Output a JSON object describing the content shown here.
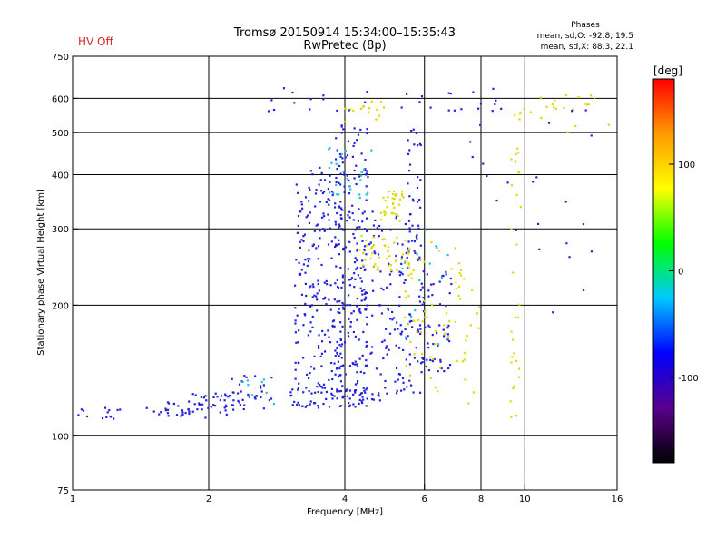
{
  "chart_data": {
    "type": "scatter",
    "title": "Tromsø 20150914 15:34:00–15:35:43",
    "subtitle": "RwPretec (8p)",
    "status_label": "HV Off",
    "info": {
      "heading": "Phases",
      "line1": "mean, sd,O: -92.8, 19.5",
      "line2": "mean, sd,X: 88.3, 22.1"
    },
    "xlabel": "Frequency [MHz]",
    "ylabel": "Stationary phase Virtual Height [km]",
    "x_scale": "log",
    "y_scale": "log",
    "xlim": [
      1,
      16
    ],
    "ylim": [
      75,
      750
    ],
    "x_ticks": [
      1,
      2,
      4,
      6,
      8,
      10,
      16
    ],
    "x_tick_labels": [
      "1",
      "2",
      "4",
      "6",
      "8",
      "10",
      "16"
    ],
    "x_gridlines": [
      2,
      4,
      6,
      8,
      10
    ],
    "y_ticks": [
      75,
      100,
      200,
      300,
      400,
      500,
      600,
      750
    ],
    "y_tick_labels": [
      "75",
      "100",
      "200",
      "300",
      "400",
      "500",
      "600",
      "750"
    ],
    "y_gridlines": [
      100,
      200,
      300,
      400,
      500,
      600
    ],
    "grid": true,
    "colorbar": {
      "label": "[deg]",
      "range": [
        -180,
        180
      ],
      "ticks": [
        -100,
        0,
        100
      ],
      "tick_labels": [
        "-100",
        "0",
        "100"
      ],
      "colors": [
        "#000000",
        "#5a008c",
        "#0000ff",
        "#00c8ff",
        "#00ff00",
        "#ffff00",
        "#ff9a00",
        "#ff0000"
      ]
    },
    "point_color_blue": "#2222dd",
    "point_color_yellow": "#e0d800",
    "point_color_cyan": "#20c0e0",
    "status_color": "#dd2222",
    "clusters": [
      {
        "x0": 1.0,
        "x1": 1.3,
        "y0": 108,
        "y1": 116,
        "n": 14,
        "color": "blue"
      },
      {
        "x0": 1.45,
        "x1": 1.9,
        "y0": 111,
        "y1": 120,
        "n": 24,
        "color": "blue"
      },
      {
        "x0": 1.8,
        "x1": 2.4,
        "y0": 110,
        "y1": 126,
        "n": 40,
        "color": "blue"
      },
      {
        "x0": 2.2,
        "x1": 2.8,
        "y0": 115,
        "y1": 138,
        "n": 30,
        "color": "blue"
      },
      {
        "x0": 2.3,
        "x1": 2.8,
        "y0": 118,
        "y1": 135,
        "n": 8,
        "color": "cyan"
      },
      {
        "x0": 3.0,
        "x1": 4.8,
        "y0": 116,
        "y1": 128,
        "n": 70,
        "color": "blue"
      },
      {
        "x0": 3.1,
        "x1": 4.0,
        "y0": 125,
        "y1": 420,
        "n": 230,
        "color": "blue"
      },
      {
        "x0": 3.8,
        "x1": 4.5,
        "y0": 130,
        "y1": 540,
        "n": 170,
        "color": "blue"
      },
      {
        "x0": 4.2,
        "x1": 5.9,
        "y0": 125,
        "y1": 330,
        "n": 170,
        "color": "blue"
      },
      {
        "x0": 5.8,
        "x1": 6.9,
        "y0": 140,
        "y1": 240,
        "n": 60,
        "color": "blue"
      },
      {
        "x0": 5.5,
        "x1": 5.9,
        "y0": 280,
        "y1": 520,
        "n": 30,
        "color": "blue"
      },
      {
        "x0": 4.3,
        "x1": 5.6,
        "y0": 240,
        "y1": 290,
        "n": 45,
        "color": "yellow"
      },
      {
        "x0": 4.8,
        "x1": 5.4,
        "y0": 310,
        "y1": 370,
        "n": 30,
        "color": "yellow"
      },
      {
        "x0": 5.4,
        "x1": 7.4,
        "y0": 125,
        "y1": 280,
        "n": 60,
        "color": "yellow"
      },
      {
        "x0": 4.0,
        "x1": 5.0,
        "y0": 520,
        "y1": 600,
        "n": 15,
        "color": "yellow"
      },
      {
        "x0": 3.6,
        "x1": 4.6,
        "y0": 350,
        "y1": 480,
        "n": 25,
        "color": "cyan"
      },
      {
        "x0": 5.2,
        "x1": 6.8,
        "y0": 160,
        "y1": 300,
        "n": 15,
        "color": "cyan"
      },
      {
        "x0": 9.5,
        "x1": 15.8,
        "y0": 500,
        "y1": 610,
        "n": 25,
        "color": "yellow"
      },
      {
        "x0": 9.3,
        "x1": 9.8,
        "y0": 110,
        "y1": 460,
        "n": 30,
        "color": "yellow"
      },
      {
        "x0": 7.5,
        "x1": 14.5,
        "y0": 180,
        "y1": 610,
        "n": 25,
        "color": "blue"
      },
      {
        "x0": 2.5,
        "x1": 9.0,
        "y0": 560,
        "y1": 635,
        "n": 30,
        "color": "blue"
      },
      {
        "x0": 6.8,
        "x1": 8.0,
        "y0": 115,
        "y1": 240,
        "n": 12,
        "color": "yellow"
      }
    ]
  }
}
